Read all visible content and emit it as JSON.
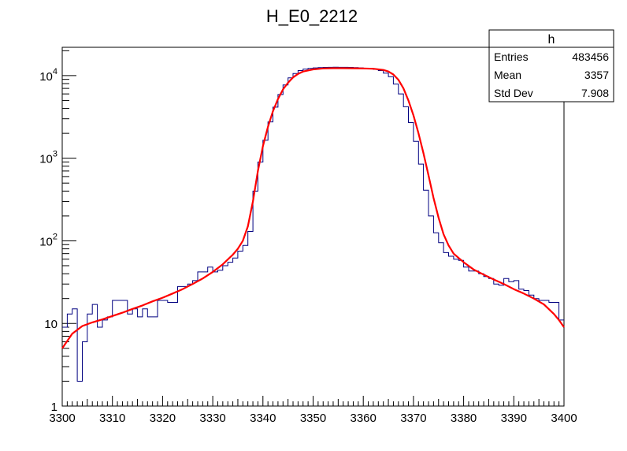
{
  "chart_data": {
    "type": "histogram",
    "title": "H_E0_2212",
    "xlim": [
      3300,
      3400
    ],
    "ylim": [
      1,
      22000
    ],
    "y_scale": "log",
    "x_ticks": [
      "3300",
      "3310",
      "3320",
      "3330",
      "3340",
      "3350",
      "3360",
      "3370",
      "3380",
      "3390",
      "3400"
    ],
    "y_ticks": [
      {
        "value": 1,
        "base": "1",
        "exp": ""
      },
      {
        "value": 10,
        "base": "10",
        "exp": ""
      },
      {
        "value": 100,
        "base": "10",
        "exp": "2"
      },
      {
        "value": 1000,
        "base": "10",
        "exp": "3"
      },
      {
        "value": 10000,
        "base": "10",
        "exp": "4"
      }
    ],
    "stats": {
      "name": "h",
      "rows": [
        {
          "label": "Entries",
          "value": "483456"
        },
        {
          "label": "Mean",
          "value": "3357"
        },
        {
          "label": "Std Dev",
          "value": "7.908"
        }
      ]
    },
    "series": [
      {
        "kind": "step",
        "color": "#000080",
        "bin_width": 1,
        "x_start": 3300,
        "values": [
          9,
          13,
          15,
          2,
          6,
          13,
          17,
          9,
          11,
          12,
          19,
          19,
          19,
          13,
          15,
          12,
          15,
          12,
          12,
          19,
          19,
          18,
          18,
          28,
          28,
          30,
          33,
          42,
          42,
          48,
          42,
          44,
          50,
          55,
          62,
          75,
          88,
          130,
          400,
          900,
          1650,
          2750,
          4150,
          5900,
          7700,
          9400,
          10600,
          11500,
          12000,
          12200,
          12400,
          12500,
          12550,
          12600,
          12620,
          12600,
          12580,
          12550,
          12500,
          12400,
          12300,
          12150,
          11900,
          11500,
          10700,
          9700,
          7900,
          6000,
          4200,
          2700,
          1600,
          850,
          410,
          200,
          125,
          95,
          72,
          65,
          60,
          58,
          48,
          43,
          43,
          40,
          37,
          35,
          30,
          29,
          35,
          32,
          33,
          26,
          25,
          22,
          20,
          19,
          19,
          18,
          18,
          11
        ]
      },
      {
        "kind": "fit",
        "color": "#ff0000",
        "x": [
          3300,
          3302,
          3304,
          3306,
          3308,
          3310,
          3312,
          3314,
          3316,
          3318,
          3320,
          3322,
          3324,
          3326,
          3328,
          3330,
          3332,
          3334,
          3335,
          3336,
          3337,
          3338,
          3339,
          3340,
          3341,
          3342,
          3343,
          3344,
          3345,
          3346,
          3347,
          3348,
          3350,
          3352,
          3354,
          3356,
          3358,
          3360,
          3362,
          3364,
          3365,
          3366,
          3367,
          3368,
          3369,
          3370,
          3371,
          3372,
          3373,
          3374,
          3375,
          3376,
          3377,
          3378,
          3380,
          3382,
          3384,
          3386,
          3388,
          3390,
          3392,
          3394,
          3396,
          3398,
          3399,
          3400
        ],
        "y": [
          5,
          7.5,
          9.3,
          10.3,
          11.2,
          12.3,
          13.5,
          15,
          16.5,
          18.5,
          20.5,
          23,
          26,
          30,
          35,
          42,
          52,
          68,
          80,
          100,
          150,
          300,
          700,
          1400,
          2400,
          3700,
          5200,
          6800,
          8200,
          9500,
          10500,
          11200,
          11900,
          12200,
          12300,
          12300,
          12250,
          12200,
          12100,
          11700,
          11200,
          10300,
          8900,
          7000,
          5000,
          3300,
          2000,
          1150,
          620,
          330,
          190,
          120,
          88,
          70,
          55,
          45,
          39,
          34,
          30,
          26,
          23,
          20,
          17,
          13,
          11,
          9
        ]
      }
    ]
  }
}
